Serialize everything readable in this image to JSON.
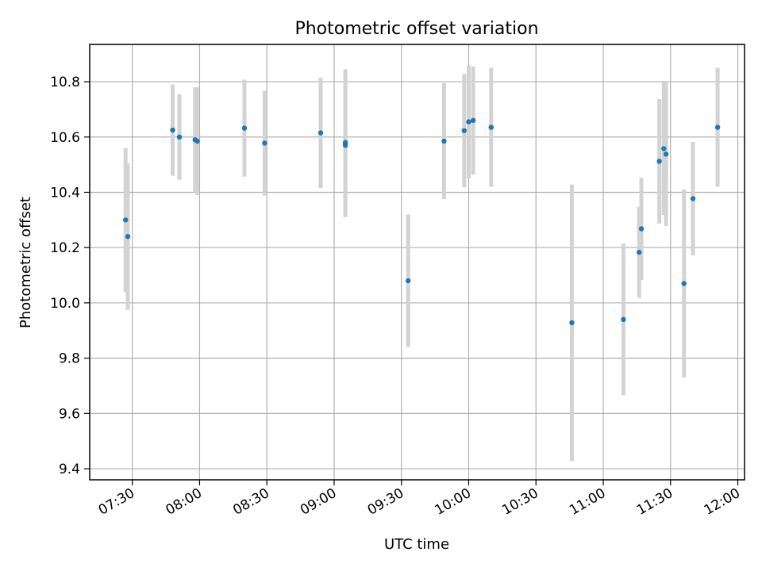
{
  "chart_data": {
    "type": "scatter",
    "title": "Photometric offset variation",
    "xlabel": "UTC time",
    "ylabel": "Photometric offset",
    "x_ticks": [
      "07:30",
      "08:00",
      "08:30",
      "09:00",
      "09:30",
      "10:00",
      "10:30",
      "11:00",
      "11:30",
      "12:00"
    ],
    "y_ticks": [
      "9.4",
      "9.6",
      "9.8",
      "10.0",
      "10.2",
      "10.4",
      "10.6",
      "10.8"
    ],
    "xlim": [
      "07:11",
      "12:03"
    ],
    "ylim": [
      9.36,
      10.935
    ],
    "grid": true,
    "marker_color": "#1f77b4",
    "errorbar_color": "#d3d3d3",
    "points": [
      {
        "x": "07:27",
        "y": 10.3,
        "err": 0.26
      },
      {
        "x": "07:28",
        "y": 10.24,
        "err": 0.265
      },
      {
        "x": "07:48",
        "y": 10.625,
        "err": 0.165
      },
      {
        "x": "07:51",
        "y": 10.6,
        "err": 0.155
      },
      {
        "x": "07:58",
        "y": 10.59,
        "err": 0.19
      },
      {
        "x": "07:59",
        "y": 10.585,
        "err": 0.195
      },
      {
        "x": "08:20",
        "y": 10.632,
        "err": 0.175
      },
      {
        "x": "08:29",
        "y": 10.578,
        "err": 0.19
      },
      {
        "x": "08:54",
        "y": 10.615,
        "err": 0.2
      },
      {
        "x": "09:05",
        "y": 10.57,
        "err": 0.26
      },
      {
        "x": "09:05",
        "y": 10.58,
        "err": 0.265
      },
      {
        "x": "09:33",
        "y": 10.08,
        "err": 0.24
      },
      {
        "x": "09:49",
        "y": 10.585,
        "err": 0.21
      },
      {
        "x": "09:58",
        "y": 10.623,
        "err": 0.205
      },
      {
        "x": "10:00",
        "y": 10.655,
        "err": 0.205
      },
      {
        "x": "10:02",
        "y": 10.66,
        "err": 0.195
      },
      {
        "x": "10:10",
        "y": 10.635,
        "err": 0.215
      },
      {
        "x": "10:46",
        "y": 9.928,
        "err": 0.5
      },
      {
        "x": "11:09",
        "y": 9.94,
        "err": 0.275
      },
      {
        "x": "11:16",
        "y": 10.183,
        "err": 0.165
      },
      {
        "x": "11:17",
        "y": 10.268,
        "err": 0.185
      },
      {
        "x": "11:25",
        "y": 10.512,
        "err": 0.225
      },
      {
        "x": "11:27",
        "y": 10.558,
        "err": 0.24
      },
      {
        "x": "11:28",
        "y": 10.538,
        "err": 0.26
      },
      {
        "x": "11:36",
        "y": 10.07,
        "err": 0.34
      },
      {
        "x": "11:40",
        "y": 10.377,
        "err": 0.205
      },
      {
        "x": "11:51",
        "y": 10.635,
        "err": 0.215
      }
    ]
  }
}
